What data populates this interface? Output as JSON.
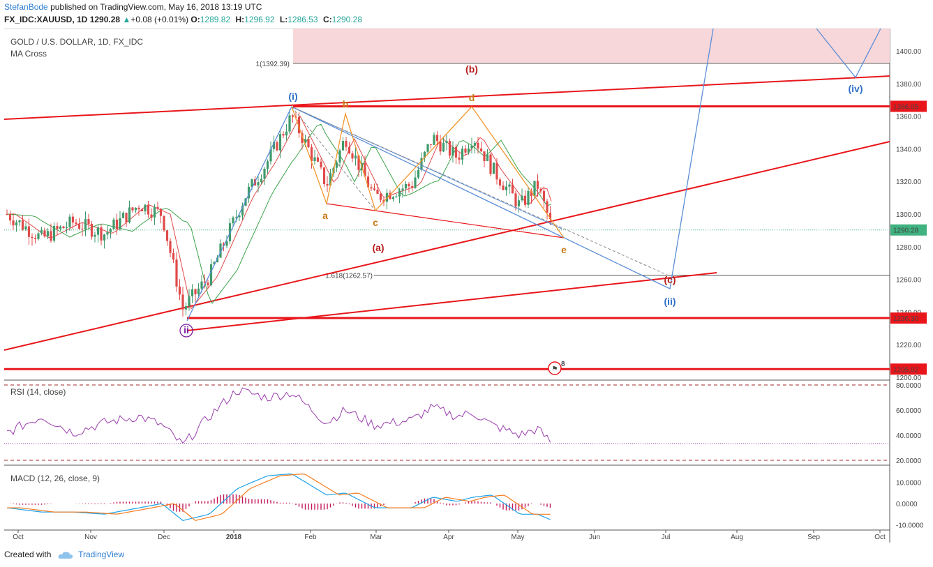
{
  "header": {
    "author": "StefanBode",
    "published": "published on TradingView.com, May 16, 2018 13:19 UTC",
    "symbol": "FX_IDC:XAUUSD, 1D",
    "last": "1290.28",
    "change": "+0.08 (+0.01%)",
    "open_label": "O:",
    "open": "1289.82",
    "high_label": "H:",
    "high": "1296.92",
    "low_label": "L:",
    "low": "1286.53",
    "close_label": "C:",
    "close": "1290.28"
  },
  "footer": {
    "created_with": "Created with",
    "brand": "TradingView"
  },
  "colors": {
    "red": "#e8161b",
    "blue": "#5b8ed6",
    "orange": "#f0962c",
    "green": "#3ca34a",
    "candle_up": "#3f9a6b",
    "candle_down": "#e04a4a",
    "zone": "#f8d7da",
    "rsi": "#9b3fae",
    "macd": "#1ea2e8",
    "signal": "#f57c1f",
    "hist": "#c2185b"
  },
  "chart_data": [
    {
      "type": "candlestick",
      "title": "GOLD / U.S. DOLLAR, 1D, FX_IDC",
      "indicator": "MA Cross",
      "y_ticks": [
        1200,
        1220,
        1240,
        1260,
        1280,
        1300,
        1320,
        1340,
        1360,
        1380,
        1400
      ],
      "y_tick_labels": [
        "1200.00",
        "1220.00",
        "1240.00",
        "1260.00",
        "1280.00",
        "1300.00",
        "1320.00",
        "1340.00",
        "1360.00",
        "1380.00",
        "1400.00"
      ],
      "ylim": [
        1196,
        1410
      ],
      "x_ticks": [
        "Oct",
        "Nov",
        "Dec",
        "2018",
        "Feb",
        "Mar",
        "Apr",
        "May",
        "Jun",
        "Jul",
        "Aug",
        "Sep",
        "Oct"
      ],
      "price_flags": [
        {
          "value": 1366.05,
          "label": "1366.05",
          "color": "#e8161b"
        },
        {
          "value": 1290.28,
          "label": "1290.28",
          "color": "#3fb27f"
        },
        {
          "value": 1236.3,
          "label": "1236.30",
          "color": "#e8161b"
        },
        {
          "value": 1205.02,
          "label": "1205.02",
          "color": "#e8161b"
        }
      ],
      "fib_levels": [
        {
          "value": 1392.39,
          "label": "1(1392.39)"
        },
        {
          "value": 1262.57,
          "label": "1.618(1262.57)"
        }
      ],
      "wave_labels": [
        {
          "text": "(i)",
          "color": "#2f6fc8"
        },
        {
          "text": "ii",
          "color": "#7b1fa2"
        },
        {
          "text": "(ii)",
          "color": "#2f6fc8"
        },
        {
          "text": "(iv)",
          "color": "#2f6fc8"
        },
        {
          "text": "(a)",
          "color": "#b71c1c"
        },
        {
          "text": "(b)",
          "color": "#b71c1c"
        },
        {
          "text": "(c)",
          "color": "#b71c1c"
        },
        {
          "text": "a",
          "color": "#c97b16"
        },
        {
          "text": "b",
          "color": "#c97b16"
        },
        {
          "text": "c",
          "color": "#c97b16"
        },
        {
          "text": "d",
          "color": "#c97b16"
        },
        {
          "text": "e",
          "color": "#c97b16"
        }
      ],
      "event_badge": "8"
    },
    {
      "type": "line",
      "title": "RSI (14, close)",
      "y_ticks": [
        20,
        40,
        60,
        80
      ],
      "y_tick_labels": [
        "20.0000",
        "40.0000",
        "60.0000",
        "80.0000"
      ],
      "ylim": [
        15,
        85
      ],
      "bands": [
        20,
        80
      ],
      "last": 33.5
    },
    {
      "type": "line",
      "title": "MACD (12, 26, close, 9)",
      "y_ticks": [
        -10,
        0,
        10
      ],
      "y_tick_labels": [
        "-10.0000",
        "0.0000",
        "10.0000"
      ],
      "ylim": [
        -12,
        17
      ]
    }
  ]
}
